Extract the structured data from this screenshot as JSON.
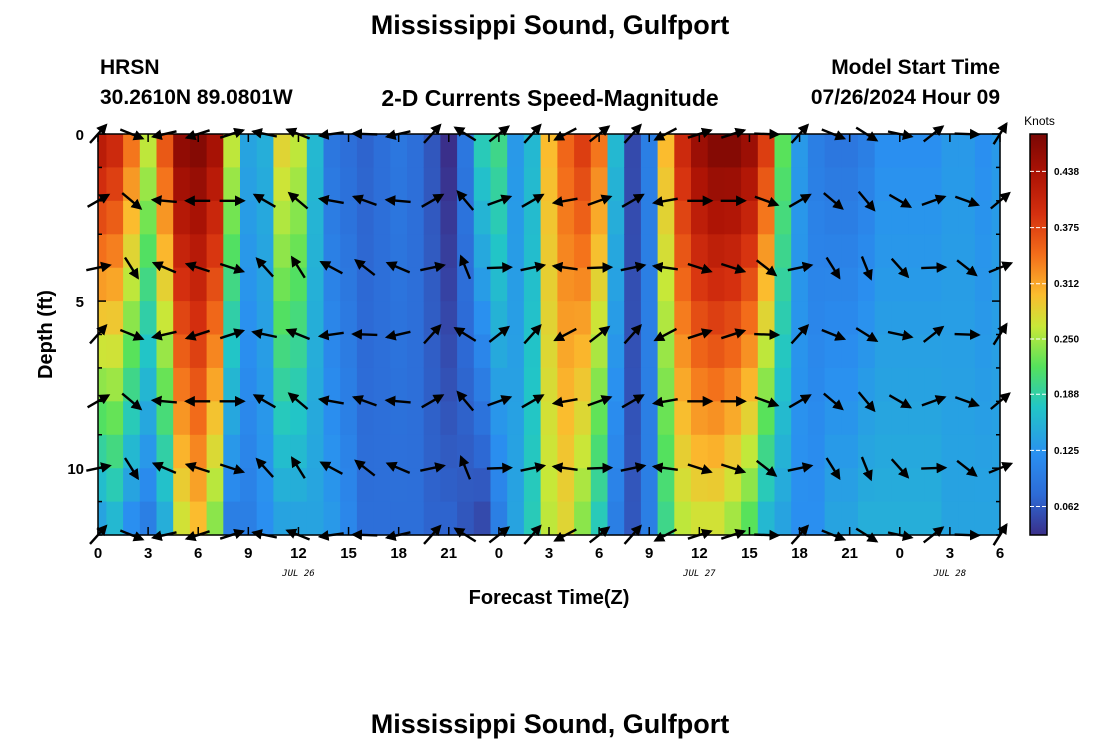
{
  "header": {
    "title": "Mississippi Sound, Gulfport",
    "station_id": "HRSN",
    "station_coords": "30.2610N  89.0801W",
    "plot_title": "2-D Currents Speed-Magnitude",
    "model_start_label": "Model Start Time",
    "model_start_value": "07/26/2024 Hour 09"
  },
  "footer": {
    "title": "Mississippi Sound, Gulfport"
  },
  "chart_data": {
    "type": "heatmap",
    "title": "2-D Currents Speed-Magnitude",
    "xlabel": "Forecast Time(Z)",
    "ylabel": "Depth (ft)",
    "x_tick_labels": [
      "0",
      "3",
      "6",
      "9",
      "12",
      "15",
      "18",
      "21",
      "0",
      "3",
      "6",
      "9",
      "12",
      "15",
      "18",
      "21",
      "0",
      "3",
      "6"
    ],
    "x_date_labels": [
      {
        "label": "JUL 26",
        "hour": 12
      },
      {
        "label": "JUL 27",
        "hour": 36
      },
      {
        "label": "JUL 28",
        "hour": 51
      }
    ],
    "x_range_hours": [
      0,
      54
    ],
    "y_tick_labels": [
      "0",
      "5",
      "10"
    ],
    "y_tick_values": [
      0,
      5,
      10
    ],
    "y_range_ft": [
      0,
      12
    ],
    "colorbar": {
      "title": "Knots",
      "tick_labels": [
        "0.438",
        "0.375",
        "0.312",
        "0.250",
        "0.188",
        "0.125",
        "0.062"
      ],
      "tick_values": [
        0.438,
        0.375,
        0.312,
        0.25,
        0.188,
        0.125,
        0.062
      ],
      "range": [
        0.03,
        0.48
      ]
    },
    "speed_profile": {
      "hours": [
        0,
        1,
        2,
        3,
        4,
        5,
        6,
        7,
        8,
        9,
        10,
        11,
        12,
        13,
        14,
        15,
        16,
        17,
        18,
        19,
        20,
        21,
        22,
        23,
        24,
        25,
        26,
        27,
        28,
        29,
        30,
        31,
        32,
        33,
        34,
        35,
        36,
        37,
        38,
        39,
        40,
        41,
        42,
        43,
        44,
        45,
        46,
        47,
        48,
        49,
        50,
        51,
        52,
        53,
        54
      ],
      "surface": [
        0.42,
        0.4,
        0.34,
        0.26,
        0.36,
        0.46,
        0.47,
        0.44,
        0.26,
        0.14,
        0.15,
        0.28,
        0.26,
        0.16,
        0.09,
        0.08,
        0.07,
        0.08,
        0.09,
        0.08,
        0.06,
        0.03,
        0.09,
        0.18,
        0.2,
        0.13,
        0.16,
        0.3,
        0.35,
        0.38,
        0.34,
        0.16,
        0.05,
        0.1,
        0.3,
        0.4,
        0.45,
        0.47,
        0.47,
        0.45,
        0.38,
        0.22,
        0.13,
        0.1,
        0.09,
        0.09,
        0.1,
        0.12,
        0.12,
        0.12,
        0.12,
        0.13,
        0.13,
        0.12,
        0.13
      ],
      "bottom": [
        0.14,
        0.16,
        0.12,
        0.1,
        0.15,
        0.27,
        0.3,
        0.24,
        0.1,
        0.1,
        0.12,
        0.14,
        0.14,
        0.14,
        0.13,
        0.11,
        0.08,
        0.08,
        0.08,
        0.08,
        0.07,
        0.07,
        0.06,
        0.05,
        0.1,
        0.14,
        0.18,
        0.26,
        0.28,
        0.24,
        0.18,
        0.1,
        0.06,
        0.1,
        0.2,
        0.26,
        0.27,
        0.27,
        0.25,
        0.22,
        0.16,
        0.14,
        0.12,
        0.12,
        0.14,
        0.14,
        0.15,
        0.15,
        0.15,
        0.15,
        0.15,
        0.14,
        0.14,
        0.14,
        0.14
      ],
      "notes_depth_profile": "interpolated surface-to-bottom"
    },
    "vector_depths_ft": [
      0,
      2,
      4,
      6,
      8,
      10,
      12
    ],
    "vector_hours": [
      0,
      2,
      4,
      6,
      8,
      10,
      12,
      14,
      16,
      18,
      20,
      22,
      24,
      26,
      28,
      30,
      32,
      34,
      36,
      38,
      40,
      42,
      44,
      46,
      48,
      50,
      52,
      54
    ],
    "vector_directions_deg": [
      -30,
      40,
      185,
      180,
      0,
      210,
      220,
      190,
      200,
      185,
      -30,
      230,
      -20,
      -30,
      170,
      -20,
      -30,
      170,
      0,
      0,
      20,
      -30,
      40,
      50,
      30,
      -20,
      20,
      -40
    ],
    "grid": false,
    "legend": "colorbar right"
  }
}
